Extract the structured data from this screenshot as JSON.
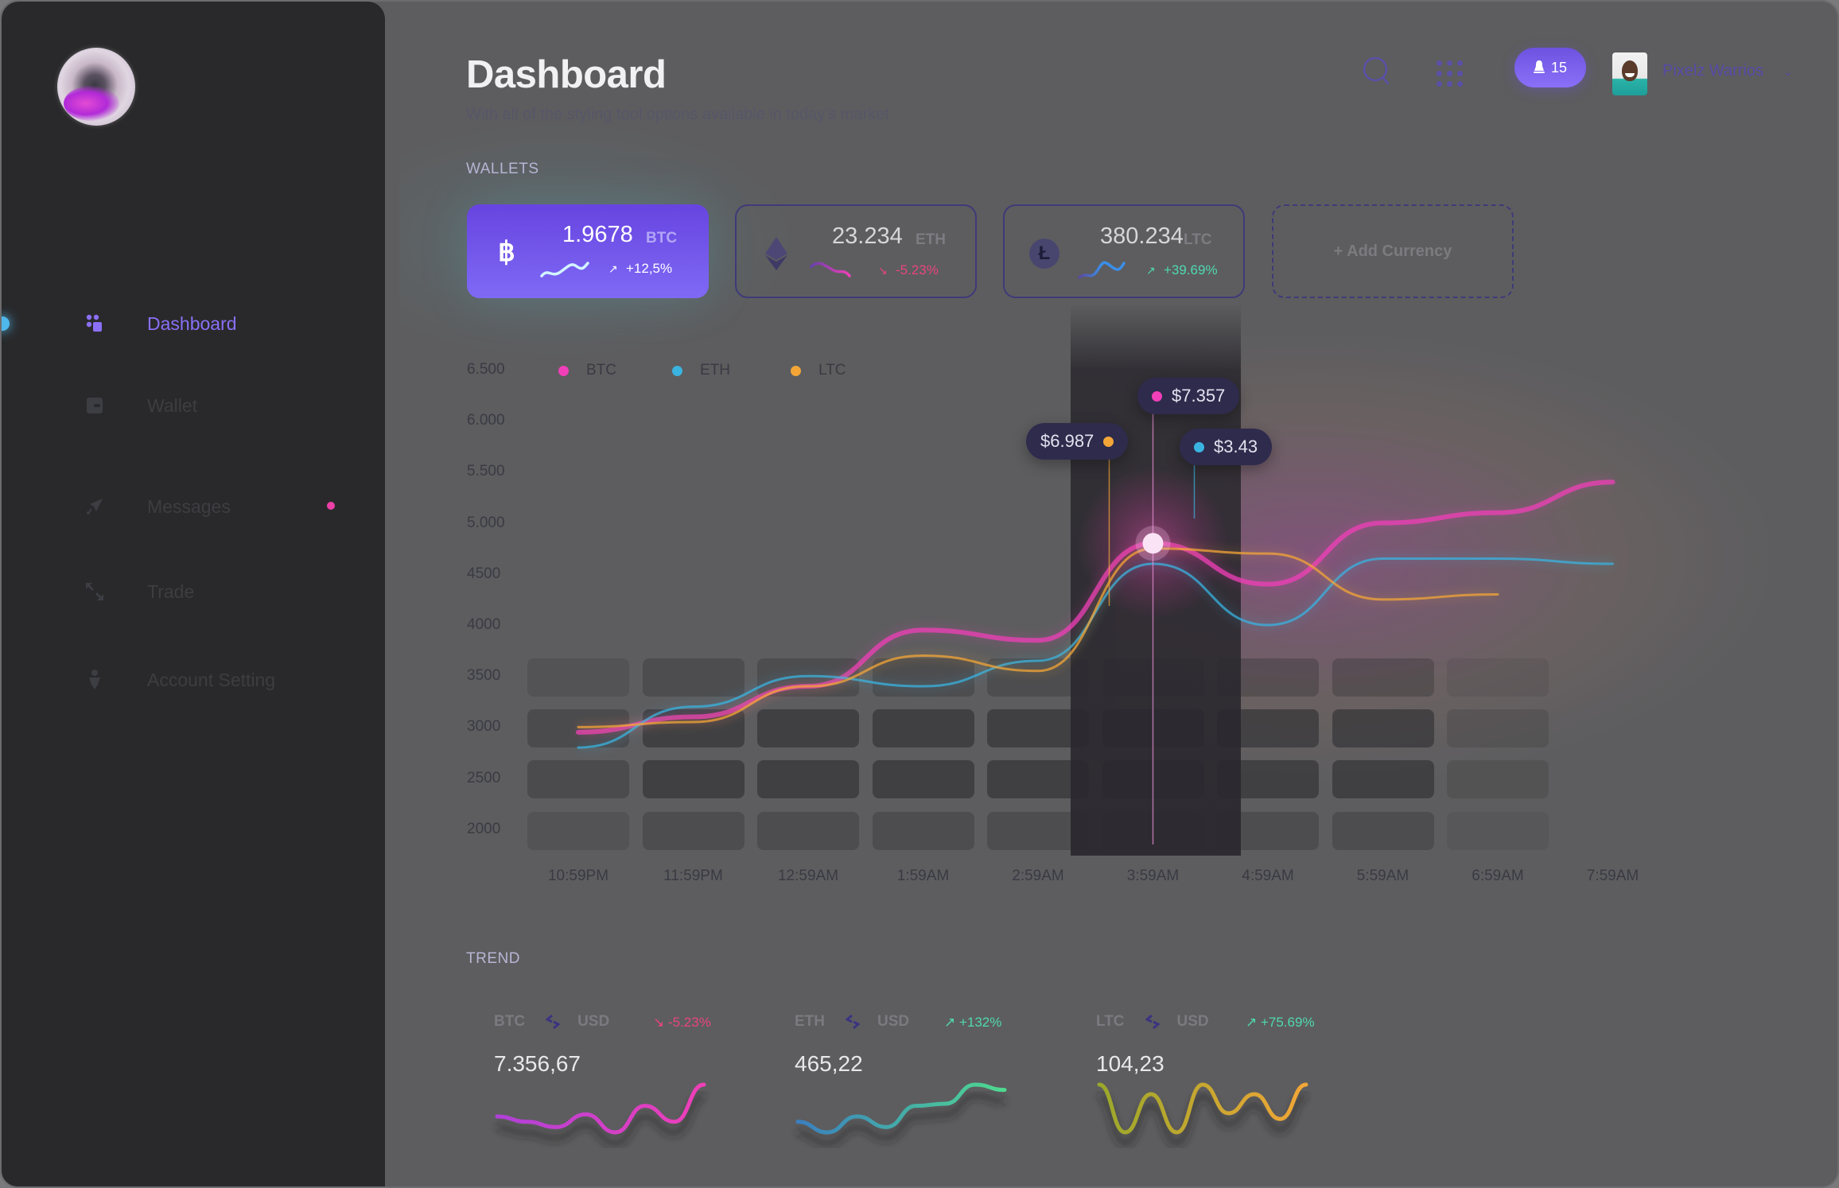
{
  "sidebar": {
    "items": [
      {
        "label": "Dashboard",
        "icon": "dashboard-icon",
        "active": true
      },
      {
        "label": "Wallet",
        "icon": "wallet-icon",
        "active": false
      },
      {
        "label": "Messages",
        "icon": "send-icon",
        "active": false,
        "unread": true
      },
      {
        "label": "Trade",
        "icon": "trade-arrows-icon",
        "active": false
      },
      {
        "label": "Account Setting",
        "icon": "user-icon",
        "active": false
      }
    ]
  },
  "header": {
    "title": "Dashboard",
    "subtitle": "With all of the styling tool options available in today's market",
    "notifications_count": "15",
    "username": "Pixelz Warrios"
  },
  "wallets": {
    "label": "WALLETS",
    "cards": [
      {
        "code": "BTC",
        "amount": "1.9678",
        "change": "+12,5%",
        "direction": "up",
        "icon": "bitcoin-icon"
      },
      {
        "code": "ETH",
        "amount": "23.234",
        "change": "-5.23%",
        "direction": "down",
        "icon": "ethereum-icon"
      },
      {
        "code": "LTC",
        "amount": "380.234",
        "change": "+39.69%",
        "direction": "up",
        "icon": "litecoin-icon"
      }
    ],
    "add_label": "+ Add Currency"
  },
  "colors": {
    "accent": "#7b61f0",
    "btc": "#f03fb8",
    "eth": "#3ab3e0",
    "ltc": "#f3a637",
    "positive": "#4fd9b0",
    "negative": "#e9457a"
  },
  "chart_data": {
    "type": "line",
    "title": "",
    "xlabel": "",
    "ylabel": "",
    "y_ticks": [
      "6.500",
      "6.000",
      "5.500",
      "5.000",
      "4500",
      "4000",
      "3500",
      "3000",
      "2500",
      "2000"
    ],
    "ylim": [
      2000,
      6500
    ],
    "x": [
      "10:59PM",
      "11:59PM",
      "12:59AM",
      "1:59AM",
      "2:59AM",
      "3:59AM",
      "4:59AM",
      "5:59AM",
      "6:59AM",
      "7:59AM"
    ],
    "legend": [
      "BTC",
      "ETH",
      "LTC"
    ],
    "legend_position": "top-left",
    "series": [
      {
        "name": "BTC",
        "values": [
          2950,
          3100,
          3400,
          3950,
          3850,
          4800,
          4400,
          5000,
          5100,
          5400
        ]
      },
      {
        "name": "ETH",
        "values": [
          2800,
          3200,
          3500,
          3400,
          3650,
          4600,
          4000,
          4650,
          4650,
          4600
        ]
      },
      {
        "name": "LTC",
        "values": [
          3000,
          3050,
          3400,
          3700,
          3550,
          4750,
          4700,
          4250,
          4300,
          null
        ]
      }
    ],
    "highlight": {
      "x": "3:59AM",
      "tooltips": [
        {
          "series": "LTC",
          "label": "$6.987"
        },
        {
          "series": "BTC",
          "label": "$7.357"
        },
        {
          "series": "ETH",
          "label": "$3.43"
        }
      ]
    }
  },
  "trend": {
    "label": "TREND",
    "items": [
      {
        "base": "BTC",
        "quote": "USD",
        "change": "-5.23%",
        "direction": "down",
        "value": "7.356,67",
        "spark": [
          3,
          2.5,
          2,
          3.2,
          1.5,
          4,
          2.5,
          6
        ]
      },
      {
        "base": "ETH",
        "quote": "USD",
        "change": "+132%",
        "direction": "up",
        "value": "465,22",
        "spark": [
          2.5,
          1.5,
          3,
          2,
          4,
          4.2,
          6,
          5.5
        ]
      },
      {
        "base": "LTC",
        "quote": "USD",
        "change": "+75.69%",
        "direction": "up",
        "value": "104,23",
        "spark": [
          4,
          1.5,
          3.5,
          1.5,
          4,
          2.5,
          3.5,
          2.2,
          4
        ]
      }
    ]
  }
}
